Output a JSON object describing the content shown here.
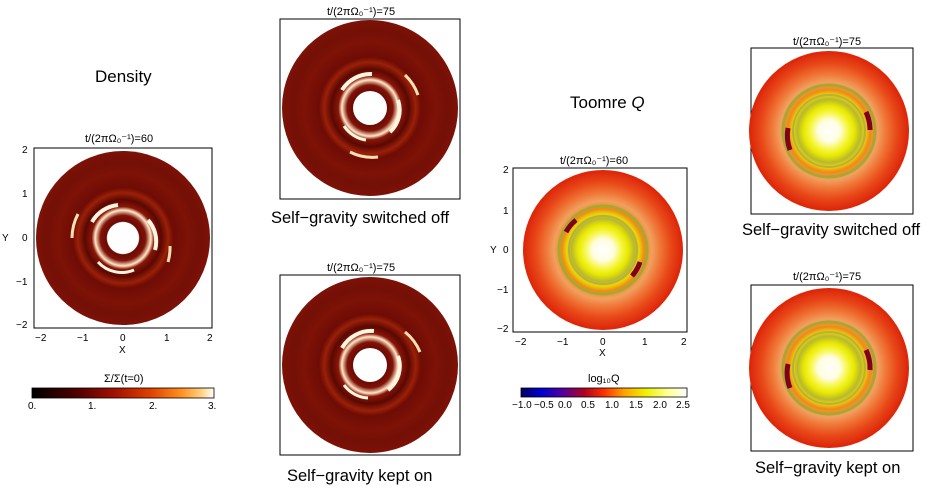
{
  "headings": {
    "density": "Density",
    "toomre": "Toomre Q"
  },
  "panel_titles": {
    "t60": "t/(2πΩ₀⁻¹)=60",
    "t75": "t/(2πΩ₀⁻¹)=75"
  },
  "captions": {
    "switched_off": "Self−gravity switched off",
    "kept_on": "Self−gravity kept on"
  },
  "axes": {
    "x_label": "X",
    "y_label": "Y",
    "ticks": [
      "−2",
      "−1",
      "0",
      "1",
      "2"
    ]
  },
  "colorbars": {
    "density": {
      "label": "Σ/Σ(t=0)",
      "ticks": [
        "0.",
        "1.",
        "2.",
        "3."
      ]
    },
    "toomre": {
      "label": "log₁₀Q",
      "ticks": [
        "−1.0",
        "−0.5",
        "0.0",
        "0.5",
        "1.0",
        "1.5",
        "2.0",
        "2.5"
      ]
    }
  },
  "colors": {
    "disk_dark_red": "#7a0e06",
    "ring_white": "#fff0d0",
    "toomre_red": "#e43a10",
    "toomre_yellow": "#f2f200",
    "toomre_olive": "#a8a830"
  }
}
